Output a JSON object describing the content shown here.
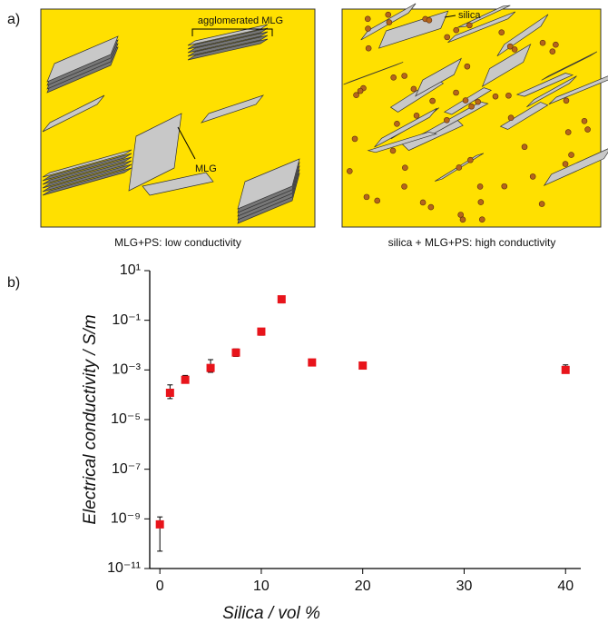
{
  "panel_labels": [
    "a)",
    "b)"
  ],
  "schematic": {
    "left_caption": "MLG+PS: low conductivity",
    "right_caption": "silica + MLG+PS: high conductivity",
    "left_annotations": [
      "agglomerated MLG",
      "MLG"
    ],
    "right_annotations": [
      "silica"
    ]
  },
  "chart_data": {
    "type": "scatter",
    "x_label": "Silica / vol %",
    "y_label": "Electrical conductivity / S/m",
    "log_y": true,
    "grid": false,
    "xlim": [
      -1,
      41.5
    ],
    "xticks": [
      0,
      10,
      20,
      30,
      40
    ],
    "ylim": [
      1e-11,
      10
    ],
    "yticks": [
      {
        "value": 10,
        "label": "10¹"
      },
      {
        "value": 0.1,
        "label": "10⁻¹"
      },
      {
        "value": 0.001,
        "label": "10⁻³"
      },
      {
        "value": 1e-05,
        "label": "10⁻⁵"
      },
      {
        "value": 1e-07,
        "label": "10⁻⁷"
      },
      {
        "value": 1e-09,
        "label": "10⁻⁹"
      },
      {
        "value": 1e-11,
        "label": "10⁻¹¹"
      }
    ],
    "series": [
      {
        "color": "#e8141b",
        "x": [
          0,
          1,
          2.5,
          5,
          7.5,
          10,
          12,
          15,
          20,
          40
        ],
        "values": [
          6e-10,
          0.00012,
          0.0004,
          0.0012,
          0.005,
          0.035,
          0.7,
          0.002,
          0.0015,
          0.001
        ],
        "error_low": [
          5.5e-10,
          5e-05,
          0.0001,
          0.0004,
          0.0015,
          0.01,
          0.2,
          0.0005,
          0.0003,
          0.0002
        ],
        "error_high": [
          6e-10,
          0.00013,
          0.0002,
          0.0014,
          0.002,
          0.012,
          0.25,
          0.0006,
          0.0004,
          0.0006
        ]
      }
    ]
  }
}
